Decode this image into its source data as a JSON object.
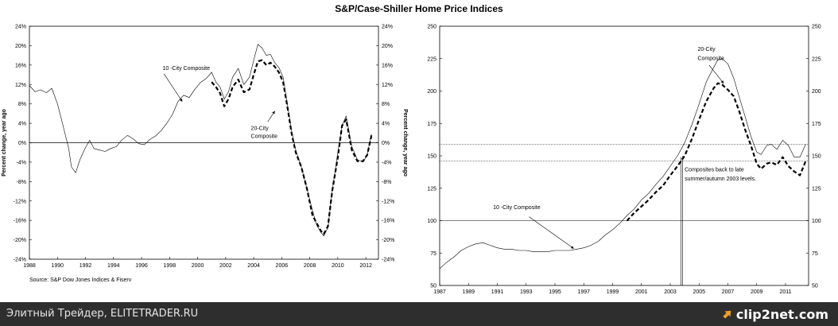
{
  "title": "S&P/Case-Shiller Home Price Indices",
  "footer": {
    "left_text": "Элитный Трейдер, ELITETRADER.RU",
    "right_text": "clip2net.com",
    "logo_icon": "clip2net-logo-icon"
  },
  "chart_data": [
    {
      "type": "line",
      "title": "",
      "ylabel_left": "Percent change, year ago",
      "ylabel_right": "Percent change, year ago",
      "xlim": [
        1988,
        2012.9
      ],
      "ylim": [
        -24,
        24
      ],
      "x_ticks": [
        "1988",
        "1990",
        "1992",
        "1994",
        "1996",
        "1998",
        "2000",
        "2002",
        "2004",
        "2006",
        "2008",
        "2010",
        "2012"
      ],
      "y_ticks": [
        "24%",
        "20%",
        "16%",
        "12%",
        "8%",
        "4%",
        "0%",
        "-4%",
        "-8%",
        "-12%",
        "-16%",
        "-20%",
        "-24%"
      ],
      "source": "Source: S&P Dow Jones Indices & Fiserv",
      "annotations": [
        {
          "text": "10 -City Composite",
          "x": 1997.5,
          "y": 15
        },
        {
          "text": "20-City",
          "x": 2003.8,
          "y": 2.6
        },
        {
          "text": "Composite",
          "x": 2003.8,
          "y": 1.0
        }
      ],
      "arrows": [
        {
          "from": [
            1997.6,
            14.2
          ],
          "to": [
            1998.9,
            8.5
          ]
        },
        {
          "from": [
            2005.0,
            4.3
          ],
          "to": [
            2005.5,
            6.5
          ]
        }
      ],
      "series": [
        {
          "name": "10-City Composite",
          "style": "solid",
          "x": [
            1988.0,
            1988.4,
            1988.8,
            1989.2,
            1989.6,
            1990.0,
            1990.4,
            1990.8,
            1991.0,
            1991.3,
            1991.6,
            1992.0,
            1992.3,
            1992.6,
            1993.0,
            1993.4,
            1993.8,
            1994.2,
            1994.6,
            1995.0,
            1995.4,
            1995.8,
            1996.2,
            1996.6,
            1997.0,
            1997.4,
            1997.8,
            1998.2,
            1998.6,
            1999.0,
            1999.4,
            1999.8,
            2000.2,
            2000.6,
            2001.0,
            2001.3,
            2001.6,
            2001.9,
            2002.2,
            2002.5,
            2002.9,
            2003.3,
            2003.7,
            2004.0,
            2004.3,
            2004.6,
            2004.9,
            2005.2,
            2005.5,
            2005.8,
            2006.1,
            2006.4,
            2006.7,
            2007.0,
            2007.4,
            2007.8,
            2008.2,
            2008.5,
            2008.8,
            2009.0,
            2009.3,
            2009.6,
            2010.0,
            2010.3,
            2010.6,
            2011.0,
            2011.4,
            2011.8,
            2012.1,
            2012.4
          ],
          "y": [
            11.8,
            10.5,
            10.9,
            10.3,
            11.2,
            8,
            3.5,
            -1.2,
            -5,
            -6.2,
            -3.5,
            -1,
            0.5,
            -1.2,
            -1.5,
            -1.8,
            -1.2,
            -0.8,
            0.6,
            1.5,
            0.8,
            -0.2,
            -0.4,
            0.7,
            1.4,
            2.5,
            4,
            5.8,
            8.5,
            9.8,
            9.3,
            11,
            12.4,
            13.2,
            14.5,
            12.5,
            11.5,
            9,
            10.5,
            13.5,
            15.3,
            12,
            13.5,
            17,
            20.3,
            19.5,
            18,
            18.2,
            16.5,
            15.5,
            13.5,
            8,
            2.5,
            -1.5,
            -5,
            -9.5,
            -14,
            -17,
            -18.5,
            -19.2,
            -17.5,
            -10,
            -2,
            3.5,
            5.5,
            -0.8,
            -3.5,
            -4,
            -2.5,
            1.8
          ]
        },
        {
          "name": "20-City Composite",
          "style": "dashed",
          "x": [
            2001.0,
            2001.3,
            2001.6,
            2001.9,
            2002.2,
            2002.5,
            2002.9,
            2003.3,
            2003.7,
            2004.0,
            2004.3,
            2004.6,
            2004.9,
            2005.2,
            2005.5,
            2005.8,
            2006.1,
            2006.4,
            2006.7,
            2007.0,
            2007.4,
            2007.8,
            2008.2,
            2008.5,
            2008.8,
            2009.0,
            2009.3,
            2009.6,
            2010.0,
            2010.3,
            2010.6,
            2011.0,
            2011.4,
            2011.8,
            2012.1,
            2012.4
          ],
          "y": [
            12.5,
            11.5,
            10.2,
            7.5,
            9,
            11.5,
            13,
            10.4,
            11,
            14,
            16.8,
            17,
            16,
            16.5,
            15.7,
            14.5,
            12.5,
            7.5,
            2,
            -2,
            -5,
            -9.5,
            -15,
            -16.6,
            -18.2,
            -18.8,
            -17.2,
            -10,
            -3,
            3.5,
            4.8,
            -1.5,
            -3.8,
            -3.8,
            -2.5,
            1.5
          ]
        }
      ]
    },
    {
      "type": "line",
      "title": "",
      "xlim": [
        1987,
        2012.6
      ],
      "ylim": [
        50,
        250
      ],
      "x_ticks": [
        "1987",
        "1989",
        "1991",
        "1993",
        "1995",
        "1997",
        "1999",
        "2001",
        "2003",
        "2005",
        "2007",
        "2009",
        "2011"
      ],
      "y_ticks": [
        "250",
        "225",
        "200",
        "175",
        "150",
        "125",
        "100",
        "75",
        "50"
      ],
      "reference_lines": [
        100,
        146,
        159
      ],
      "annotations": [
        {
          "text": "20-City",
          "x": 2004.9,
          "y": 231
        },
        {
          "text": "Composite",
          "x": 2004.9,
          "y": 224
        },
        {
          "text": "10 -City Composite",
          "x": 1990.7,
          "y": 109
        },
        {
          "text": "Composites  back to late",
          "x": 2004.0,
          "y": 138
        },
        {
          "text": "summer/autumn 2003 levels.",
          "x": 2004.0,
          "y": 131
        }
      ],
      "arrows": [
        {
          "from": [
            1993.2,
            103
          ],
          "to": [
            1996.3,
            78.5
          ]
        },
        {
          "from": [
            2005.7,
            220
          ],
          "to": [
            2006.7,
            206
          ]
        }
      ],
      "series": [
        {
          "name": "10-City Composite",
          "style": "solid",
          "x": [
            1987.0,
            1987.5,
            1988.0,
            1988.5,
            1989.0,
            1989.5,
            1990.0,
            1990.5,
            1991.0,
            1991.5,
            1992.0,
            1992.5,
            1993.0,
            1993.5,
            1994.0,
            1994.5,
            1995.0,
            1995.5,
            1996.0,
            1996.5,
            1997.0,
            1997.5,
            1998.0,
            1998.5,
            1999.0,
            1999.5,
            2000.0,
            2000.5,
            2001.0,
            2001.5,
            2002.0,
            2002.5,
            2003.0,
            2003.5,
            2004.0,
            2004.5,
            2005.0,
            2005.5,
            2006.0,
            2006.3,
            2006.6,
            2007.0,
            2007.4,
            2007.8,
            2008.2,
            2008.6,
            2009.0,
            2009.3,
            2009.7,
            2010.0,
            2010.4,
            2010.8,
            2011.2,
            2011.6,
            2012.0,
            2012.4
          ],
          "y": [
            63,
            68,
            72,
            77,
            80,
            82,
            83,
            81,
            79,
            78,
            78,
            77,
            77,
            76,
            76,
            76,
            77,
            77,
            77,
            78,
            79,
            81,
            84,
            89,
            93,
            98,
            104,
            109,
            116,
            121,
            128,
            134,
            142,
            150,
            160,
            174,
            190,
            207,
            218,
            224,
            225,
            221,
            210,
            195,
            180,
            165,
            153,
            151,
            158,
            159,
            155,
            162,
            158,
            149,
            149,
            159
          ]
        },
        {
          "name": "20-City Composite",
          "style": "dashed",
          "x": [
            2000.0,
            2000.5,
            2001.0,
            2001.5,
            2002.0,
            2002.5,
            2003.0,
            2003.5,
            2004.0,
            2004.5,
            2005.0,
            2005.5,
            2006.0,
            2006.3,
            2006.6,
            2007.0,
            2007.4,
            2007.8,
            2008.2,
            2008.6,
            2009.0,
            2009.3,
            2009.7,
            2010.0,
            2010.4,
            2010.8,
            2011.2,
            2011.6,
            2012.0,
            2012.4
          ],
          "y": [
            100,
            106,
            111,
            116,
            122,
            127,
            135,
            142,
            150,
            163,
            178,
            192,
            202,
            206,
            205,
            201,
            196,
            184,
            170,
            158,
            144,
            140,
            144,
            145,
            143,
            149,
            142,
            138,
            135,
            146
          ]
        }
      ]
    }
  ]
}
